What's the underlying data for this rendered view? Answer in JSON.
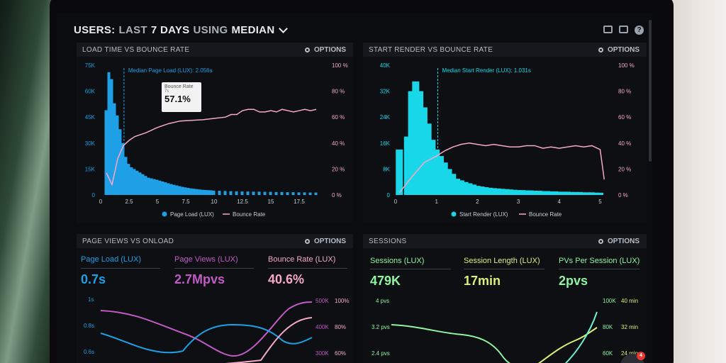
{
  "header": {
    "part1": "USERS:",
    "part2": "LAST",
    "part3": "7 DAYS",
    "part4": "USING",
    "part5": "MEDIAN"
  },
  "colors": {
    "blue": "#1f9fe6",
    "cyan": "#18d7e8",
    "pink": "#f6a8c9",
    "purple": "#c25ac6",
    "green": "#8ff3a0",
    "teal": "#6ef0d0",
    "yellow": "#d8f07a"
  },
  "panels": {
    "load_time": {
      "title": "LOAD TIME VS BOUNCE RATE",
      "options_label": "OPTIONS",
      "annotation": "Median Page Load (LUX): 2.056s",
      "tooltip": {
        "label": "Bounce Rate",
        "sub": "7s",
        "value": "57.1%"
      },
      "legend": [
        "Page Load (LUX)",
        "Bounce Rate"
      ]
    },
    "start_render": {
      "title": "START RENDER VS BOUNCE RATE",
      "options_label": "OPTIONS",
      "annotation": "Median Start Render (LUX): 1.031s",
      "legend": [
        "Start Render (LUX)",
        "Bounce Rate"
      ]
    },
    "page_views": {
      "title": "PAGE VIEWS VS ONLOAD",
      "options_label": "OPTIONS",
      "metrics": [
        {
          "label": "Page Load (LUX)",
          "value": "0.7s"
        },
        {
          "label": "Page Views (LUX)",
          "value": "2.7Mpvs"
        },
        {
          "label": "Bounce Rate (LUX)",
          "value": "40.6%"
        }
      ],
      "left_scale": [
        "1s",
        "0.8s",
        "0.6s"
      ],
      "right_scale_a": [
        "500K",
        "400K",
        "300K"
      ],
      "right_scale_b": [
        "100%",
        "80%",
        "60%"
      ]
    },
    "sessions": {
      "title": "SESSIONS",
      "options_label": "OPTIONS",
      "metrics": [
        {
          "label": "Sessions (LUX)",
          "value": "479K"
        },
        {
          "label": "Session Length (LUX)",
          "value": "17min"
        },
        {
          "label": "PVs Per Session (LUX)",
          "value": "2pvs"
        }
      ],
      "left_scale": [
        "4 pvs",
        "3.2 pvs",
        "2.4 pvs"
      ],
      "right_scale_a": [
        "100K",
        "80K",
        "60K"
      ],
      "right_scale_b": [
        "40 min",
        "32 min",
        "24 min"
      ]
    }
  },
  "chat_badge": "4",
  "chart_data": [
    {
      "type": "bar",
      "name": "load_time",
      "x_ticks": [
        "0",
        "2.5",
        "5",
        "7.5",
        "10",
        "12.5",
        "15",
        "17.5"
      ],
      "y_ticks_left": [
        "75K",
        "60K",
        "45K",
        "30K",
        "15K",
        "0"
      ],
      "y_ticks_right": [
        "100 %",
        "80 %",
        "60 %",
        "40 %",
        "20 %",
        "0 %"
      ],
      "ylim_left": [
        0,
        75000
      ],
      "ylim_right": [
        0,
        100
      ],
      "bar_x": [
        0.5,
        0.75,
        1,
        1.25,
        1.5,
        1.75,
        2,
        2.25,
        2.5,
        2.75,
        3,
        3.25,
        3.5,
        3.75,
        4,
        4.25,
        4.5,
        4.75,
        5,
        5.25,
        5.5,
        5.75,
        6,
        6.25,
        6.5,
        6.75,
        7,
        7.25,
        7.5,
        7.75,
        8,
        8.25,
        8.5,
        8.75,
        9,
        9.25,
        9.5,
        9.75,
        10,
        10.5,
        11,
        11.5,
        12,
        12.5,
        13,
        13.5,
        14,
        14.5,
        15,
        15.5,
        16,
        16.5,
        17,
        17.5,
        18,
        18.5,
        19
      ],
      "bar_values": [
        49000,
        71000,
        67000,
        53000,
        46000,
        38000,
        30000,
        22000,
        18000,
        16000,
        15000,
        14000,
        13000,
        12000,
        11000,
        10000,
        9600,
        9200,
        8800,
        8300,
        7800,
        7300,
        6800,
        6300,
        5900,
        5500,
        5100,
        4700,
        4400,
        4100,
        3800,
        3600,
        3400,
        3200,
        3000,
        2900,
        2800,
        2700,
        2500,
        2400,
        2300,
        2200,
        2100,
        2000,
        2000,
        1900,
        1900,
        1800,
        1800,
        1700,
        1700,
        1600,
        1600,
        1500,
        1500,
        1400,
        1400
      ],
      "median": 2.056,
      "line_x": [
        0.5,
        1,
        1.5,
        2,
        2.5,
        3,
        4,
        5,
        6,
        7,
        8,
        9,
        10,
        11,
        11.5,
        12,
        12.5,
        13,
        13.5,
        14,
        14.5,
        15,
        15.5,
        16,
        16.5,
        17,
        17.5,
        18,
        18.5,
        19
      ],
      "line_values": [
        17,
        8,
        28,
        38,
        42,
        45,
        48,
        52,
        55,
        57,
        57.5,
        58,
        59,
        60,
        62,
        62,
        65,
        66,
        66,
        64,
        64,
        65,
        64,
        66,
        65,
        64,
        65,
        66,
        65,
        66
      ]
    },
    {
      "type": "bar",
      "name": "start_render",
      "x_ticks": [
        "0",
        "1",
        "2",
        "3",
        "4",
        "5"
      ],
      "y_ticks_left": [
        "40K",
        "32K",
        "24K",
        "16K",
        "8K",
        "0"
      ],
      "y_ticks_right": [
        "100 %",
        "80 %",
        "60 %",
        "40 %",
        "20 %",
        "0 %"
      ],
      "ylim_left": [
        0,
        40000
      ],
      "ylim_right": [
        0,
        100
      ],
      "bar_x": [
        0.1,
        0.3,
        0.4,
        0.5,
        0.6,
        0.7,
        0.8,
        0.9,
        1.0,
        1.1,
        1.2,
        1.3,
        1.4,
        1.5,
        1.6,
        1.7,
        1.8,
        1.9,
        2.0,
        2.1,
        2.2,
        2.3,
        2.4,
        2.5,
        2.6,
        2.7,
        2.8,
        2.9,
        3.0,
        3.1,
        3.2,
        3.3,
        3.4,
        3.5,
        3.6,
        3.7,
        3.8,
        3.9,
        4.0,
        4.1,
        4.2,
        4.3,
        4.4,
        4.5,
        4.6,
        4.7,
        4.8,
        4.9,
        5.0
      ],
      "bar_values": [
        14000,
        18000,
        32000,
        35000,
        32000,
        27000,
        22000,
        17000,
        14000,
        12000,
        10000,
        8000,
        6500,
        5000,
        4500,
        4000,
        3600,
        3200,
        2800,
        2600,
        2400,
        2200,
        2100,
        2000,
        1900,
        1800,
        1700,
        1600,
        1500,
        1500,
        1400,
        1400,
        1300,
        1300,
        1200,
        1200,
        1100,
        1100,
        1000,
        1000,
        1000,
        900,
        900,
        900,
        800,
        800,
        800,
        700,
        700
      ],
      "median": 1.031,
      "line_x": [
        0.1,
        0.4,
        0.7,
        1.0,
        1.2,
        1.4,
        1.6,
        1.8,
        2.0,
        2.2,
        2.4,
        2.6,
        2.8,
        3.0,
        3.2,
        3.4,
        3.6,
        3.8,
        4.0,
        4.2,
        4.4,
        4.6,
        4.8,
        5.0,
        5.1
      ],
      "line_values": [
        2,
        14,
        25,
        30,
        34,
        37,
        39,
        40,
        39,
        38,
        39,
        38,
        37,
        37,
        38,
        38,
        36,
        37,
        36,
        37,
        38,
        37,
        38,
        35,
        12
      ]
    }
  ]
}
